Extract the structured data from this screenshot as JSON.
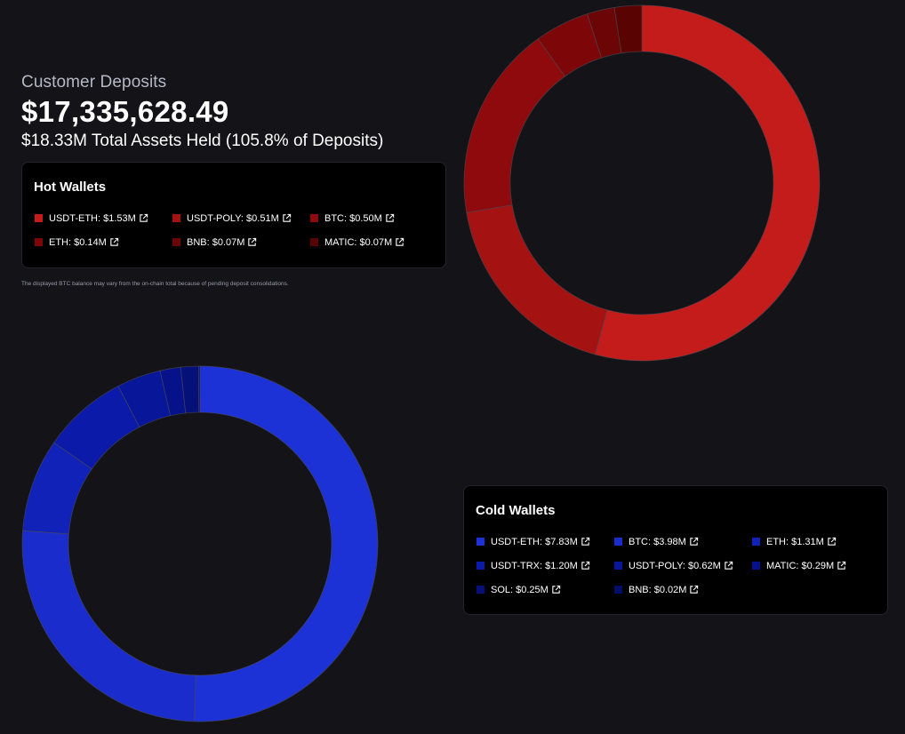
{
  "header": {
    "label": "Customer Deposits",
    "amount": "$17,335,628.49",
    "subtitle": "$18.33M Total Assets Held (105.8% of Deposits)"
  },
  "note": "The displayed BTC balance may vary from the on-chain total because of pending deposit consolidations.",
  "hot_wallets": {
    "title": "Hot Wallets",
    "items": [
      {
        "label": "USDT-ETH: $1.53M",
        "color": "#c41c1a"
      },
      {
        "label": "USDT-POLY: $0.51M",
        "color": "#a41212"
      },
      {
        "label": "BTC: $0.50M",
        "color": "#8e0a0c"
      },
      {
        "label": "ETH: $0.14M",
        "color": "#7d0708"
      },
      {
        "label": "BNB: $0.07M",
        "color": "#6c0506"
      },
      {
        "label": "MATIC: $0.07M",
        "color": "#5a0303"
      }
    ]
  },
  "cold_wallets": {
    "title": "Cold Wallets",
    "items": [
      {
        "label": "USDT-ETH: $7.83M",
        "color": "#1c32d6"
      },
      {
        "label": "BTC: $3.98M",
        "color": "#1a2dcc"
      },
      {
        "label": "ETH: $1.31M",
        "color": "#1022b8"
      },
      {
        "label": "USDT-TRX: $1.20M",
        "color": "#0b1aa8"
      },
      {
        "label": "USDT-POLY: $0.62M",
        "color": "#08169a"
      },
      {
        "label": "MATIC: $0.29M",
        "color": "#06128a"
      },
      {
        "label": "SOL: $0.25M",
        "color": "#051079"
      },
      {
        "label": "BNB: $0.02M",
        "color": "#040d68"
      }
    ]
  },
  "chart_data": [
    {
      "type": "pie",
      "style": "donut",
      "title": "Hot Wallets",
      "categories": [
        "USDT-ETH",
        "USDT-POLY",
        "BTC",
        "ETH",
        "BNB",
        "MATIC"
      ],
      "values": [
        1.53,
        0.51,
        0.5,
        0.14,
        0.07,
        0.07
      ],
      "unit": "$M",
      "colors": [
        "#c41c1a",
        "#a41212",
        "#8e0a0c",
        "#7d0708",
        "#6c0506",
        "#5a0303"
      ]
    },
    {
      "type": "pie",
      "style": "donut",
      "title": "Cold Wallets",
      "categories": [
        "USDT-ETH",
        "BTC",
        "ETH",
        "USDT-TRX",
        "USDT-POLY",
        "MATIC",
        "SOL",
        "BNB"
      ],
      "values": [
        7.83,
        3.98,
        1.31,
        1.2,
        0.62,
        0.29,
        0.25,
        0.02
      ],
      "unit": "$M",
      "colors": [
        "#1c32d6",
        "#1a2dcc",
        "#1022b8",
        "#0b1aa8",
        "#08169a",
        "#06128a",
        "#051079",
        "#040d68"
      ]
    }
  ]
}
